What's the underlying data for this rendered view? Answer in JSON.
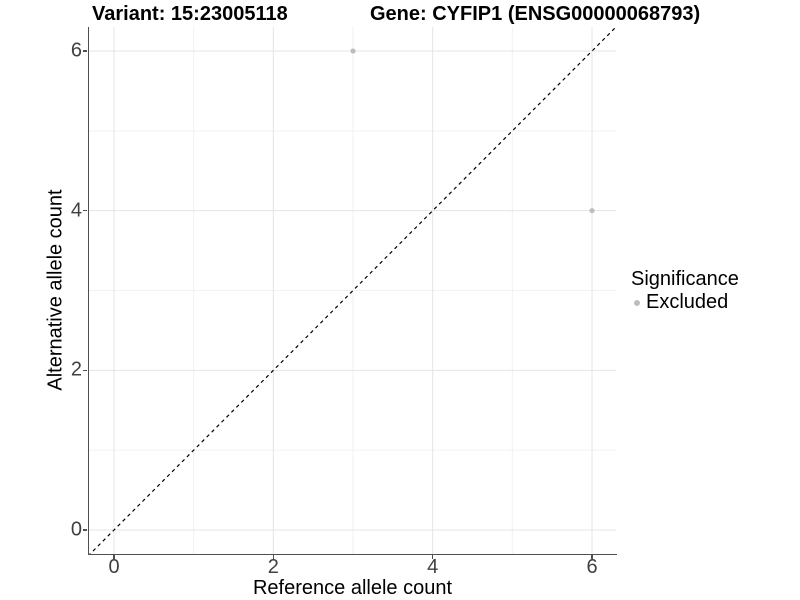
{
  "titles": {
    "left": "Variant: 15:23005118",
    "right": "Gene: CYFIP1 (ENSG00000068793)"
  },
  "chart_data": {
    "type": "scatter",
    "title": "Variant: 15:23005118   Gene: CYFIP1 (ENSG00000068793)",
    "xlabel": "Reference allele count",
    "ylabel": "Alternative allele count",
    "xlim": [
      -0.35,
      6.35
    ],
    "ylim": [
      -0.35,
      6.35
    ],
    "x_ticks": [
      0,
      2,
      4,
      6
    ],
    "y_ticks": [
      0,
      2,
      4,
      6
    ],
    "x_minor_ticks": [
      1,
      3,
      5
    ],
    "y_minor_ticks": [
      1,
      3,
      5
    ],
    "grid": "major and minor, light gray on white",
    "series": [
      {
        "name": "Excluded",
        "color": "#bdbdbd",
        "points": [
          {
            "x": 3,
            "y": 6
          },
          {
            "x": 6,
            "y": 4
          }
        ]
      }
    ],
    "reference_line": {
      "type": "identity-diagonal",
      "style": "dashed",
      "color": "#000000"
    },
    "legend": {
      "title": "Significance",
      "position": "right",
      "items": [
        {
          "label": "Excluded",
          "color": "#bdbdbd"
        }
      ]
    }
  },
  "colors": {
    "background": "#ffffff",
    "grid_major": "#e4e4e4",
    "grid_minor": "#f2f2f2",
    "axis_line": "#4f4f4f",
    "tick_label": "#404040",
    "point": "#bdbdbd",
    "reference_line": "#000000"
  }
}
